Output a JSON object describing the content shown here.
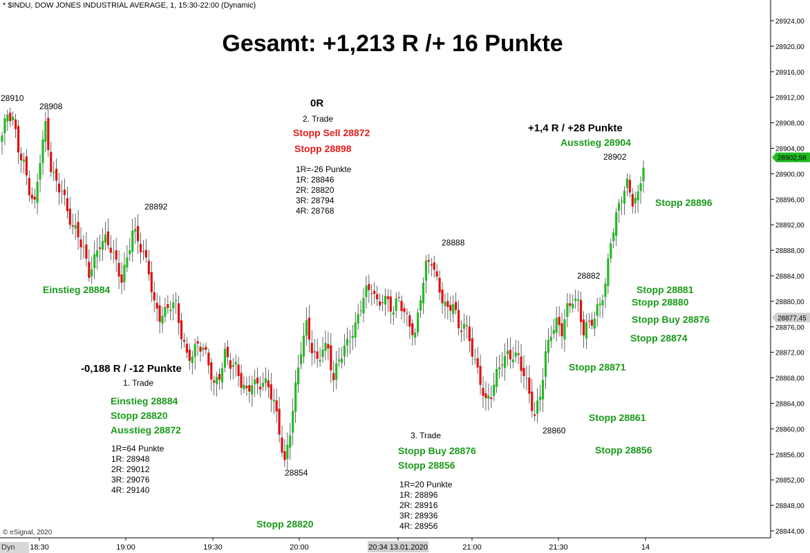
{
  "header": {
    "symbol_line": "* $INDU, DOW JONES INDUSTRIAL AVERAGE, 1, 15:30-22:00 (Dynamic)",
    "headline": "Gesamt: +1,213 R /+ 16 Punkte",
    "copyright": "© eSignal, 2020",
    "dyn_label": "Dyn"
  },
  "colors": {
    "up": "#22bb22",
    "down": "#dd1111",
    "green_text": "#1a9a1a",
    "red_text": "#e51c1c",
    "last_price_tag": "#22bb22",
    "cross_tag": "#d0d0d0"
  },
  "annotations": {
    "high1": "28910",
    "high2": "28908",
    "p28892": "28892",
    "p28854": "28854",
    "p28888": "28888",
    "p28860": "28860",
    "p28882": "28882",
    "p28902": "28902",
    "einstieg_top": "Einstieg 28884",
    "zero_r": "0R",
    "trade2": {
      "title": "2. Trade",
      "stopp_sell": "Stopp Sell 28872",
      "stopp": "Stopp 28898",
      "lines": [
        "1R=-26 Punkte",
        "1R: 28846",
        "2R: 28820",
        "3R: 28794",
        "4R: 28768"
      ]
    },
    "trade1": {
      "result": "-0,188 R / -12 Punkte",
      "title": "1. Trade",
      "einstieg": "Einstieg 28884",
      "stopp": "Stopp 28820",
      "ausstieg": "Ausstieg 28872",
      "lines": [
        "1R=64 Punkte",
        "1R: 28948",
        "2R: 29012",
        "3R: 29076",
        "4R: 29140"
      ]
    },
    "stopp_28820_bottom": "Stopp 28820",
    "trade3": {
      "title": "3. Trade",
      "stopp_buy": "Stopp Buy 28876",
      "stopp": "Stopp 28856",
      "lines": [
        "1R=20 Punkte",
        "1R: 28896",
        "2R: 28916",
        "3R: 28936",
        "4R: 28956"
      ]
    },
    "result3": "+1,4 R / +28 Punkte",
    "ausstieg_28904": "Ausstieg 28904",
    "right_stops": {
      "s28896": "Stopp 28896",
      "s28881": "Stopp 28881",
      "s28880": "Stopp 28880",
      "sbuy28876": "Stopp Buy 28876",
      "s28874": "Stopp 28874",
      "s28871": "Stopp 28871",
      "s28861": "Stopp 28861",
      "s28856": "Stopp 28856"
    }
  },
  "chart_data": {
    "type": "candlestick",
    "title": "",
    "xlabel": "",
    "ylabel": "",
    "ylim": [
      28842,
      28926
    ],
    "y_ticks": [
      "28844,00",
      "28848,00",
      "28852,00",
      "28856,00",
      "28860,00",
      "28864,00",
      "28868,00",
      "28872,00",
      "28876,00",
      "28880,00",
      "28884,00",
      "28888,00",
      "28892,00",
      "28896,00",
      "28900,00",
      "28904,00",
      "28908,00",
      "28912,00",
      "28916,00",
      "28920,00",
      "28924,00"
    ],
    "y_tick_values": [
      28844,
      28848,
      28852,
      28856,
      28860,
      28864,
      28868,
      28872,
      28876,
      28880,
      28884,
      28888,
      28892,
      28896,
      28900,
      28904,
      28908,
      28912,
      28916,
      28920,
      28924
    ],
    "x_ticks": [
      "18:30",
      "19:00",
      "19:30",
      "20:00",
      "20:34 13.01.2020",
      "21:00",
      "21:30",
      "14"
    ],
    "last_price": "28902,58",
    "last_price_value": 28902.58,
    "cross_price": "28877,45",
    "cross_price_value": 28877.45,
    "grid": false,
    "close_path": [
      [
        0,
        28906
      ],
      [
        2,
        28909
      ],
      [
        4,
        28908
      ],
      [
        6,
        28904
      ],
      [
        8,
        28902
      ],
      [
        10,
        28898
      ],
      [
        12,
        28895
      ],
      [
        14,
        28902
      ],
      [
        16,
        28907
      ],
      [
        18,
        28901
      ],
      [
        20,
        28899
      ],
      [
        22,
        28898
      ],
      [
        24,
        28894
      ],
      [
        26,
        28891
      ],
      [
        28,
        28890
      ],
      [
        30,
        28888
      ],
      [
        32,
        28885
      ],
      [
        34,
        28887
      ],
      [
        36,
        28889
      ],
      [
        38,
        28889
      ],
      [
        40,
        28888
      ],
      [
        42,
        28886
      ],
      [
        44,
        28884
      ],
      [
        46,
        28887
      ],
      [
        48,
        28891
      ],
      [
        50,
        28889
      ],
      [
        52,
        28887
      ],
      [
        54,
        28885
      ],
      [
        56,
        28880
      ],
      [
        58,
        28878
      ],
      [
        60,
        28878
      ],
      [
        62,
        28879
      ],
      [
        64,
        28879
      ],
      [
        66,
        28875
      ],
      [
        68,
        28872
      ],
      [
        70,
        28872
      ],
      [
        72,
        28873
      ],
      [
        74,
        28872
      ],
      [
        76,
        28870
      ],
      [
        78,
        28867
      ],
      [
        80,
        28869
      ],
      [
        82,
        28872
      ],
      [
        84,
        28870
      ],
      [
        86,
        28869
      ],
      [
        88,
        28867
      ],
      [
        90,
        28866
      ],
      [
        92,
        28868
      ],
      [
        94,
        28867
      ],
      [
        96,
        28867
      ],
      [
        98,
        28866
      ],
      [
        100,
        28864
      ],
      [
        102,
        28860
      ],
      [
        104,
        28855
      ],
      [
        106,
        28860
      ],
      [
        108,
        28866
      ],
      [
        110,
        28872
      ],
      [
        112,
        28876
      ],
      [
        114,
        28873
      ],
      [
        116,
        28871
      ],
      [
        118,
        28873
      ],
      [
        120,
        28872
      ],
      [
        122,
        28867
      ],
      [
        124,
        28871
      ],
      [
        126,
        28873
      ],
      [
        128,
        28875
      ],
      [
        130,
        28876
      ],
      [
        132,
        28879
      ],
      [
        134,
        28881
      ],
      [
        136,
        28882
      ],
      [
        138,
        28880
      ],
      [
        140,
        28881
      ],
      [
        142,
        28880
      ],
      [
        144,
        28878
      ],
      [
        146,
        28880
      ],
      [
        148,
        28878
      ],
      [
        150,
        28877
      ],
      [
        152,
        28875
      ],
      [
        154,
        28881
      ],
      [
        156,
        28885
      ],
      [
        158,
        28886
      ],
      [
        160,
        28883
      ],
      [
        162,
        28881
      ],
      [
        164,
        28879
      ],
      [
        166,
        28880
      ],
      [
        168,
        28875
      ],
      [
        170,
        28876
      ],
      [
        172,
        28874
      ],
      [
        174,
        28871
      ],
      [
        176,
        28868
      ],
      [
        178,
        28864
      ],
      [
        180,
        28865
      ],
      [
        182,
        28868
      ],
      [
        184,
        28871
      ],
      [
        186,
        28872
      ],
      [
        188,
        28872
      ],
      [
        190,
        28871
      ],
      [
        192,
        28868
      ],
      [
        194,
        28865
      ],
      [
        196,
        28862
      ],
      [
        198,
        28866
      ],
      [
        200,
        28872
      ],
      [
        202,
        28875
      ],
      [
        204,
        28876
      ],
      [
        206,
        28875
      ],
      [
        208,
        28879
      ],
      [
        210,
        28881
      ],
      [
        212,
        28880
      ],
      [
        214,
        28875
      ],
      [
        216,
        28876
      ],
      [
        218,
        28877
      ],
      [
        220,
        28880
      ],
      [
        222,
        28883
      ],
      [
        224,
        28890
      ],
      [
        226,
        28893
      ],
      [
        228,
        28896
      ],
      [
        230,
        28898
      ],
      [
        232,
        28896
      ],
      [
        234,
        28897
      ],
      [
        236,
        28902
      ]
    ],
    "n_bars": 237
  }
}
